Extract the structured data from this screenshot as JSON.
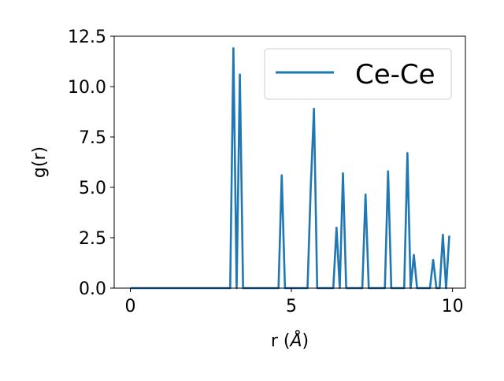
{
  "chart_data": {
    "type": "line",
    "title": "",
    "xlabel_main": "r (",
    "xlabel_unit": "Å",
    "xlabel_close": ")",
    "ylabel": "g(r)",
    "xlim": [
      -0.5,
      10.4
    ],
    "ylim": [
      0,
      12.5
    ],
    "xticks": [
      0,
      5,
      10
    ],
    "xtick_labels": [
      "0",
      "5",
      "10"
    ],
    "yticks": [
      0,
      2.5,
      5.0,
      7.5,
      10.0,
      12.5
    ],
    "ytick_labels": [
      "0.0",
      "2.5",
      "5.0",
      "7.5",
      "10.0",
      "12.5"
    ],
    "grid": false,
    "legend_position": "top-right",
    "series": [
      {
        "name": "Ce-Ce",
        "color": "#1f77b4",
        "x": [
          0.0,
          3.1,
          3.2,
          3.3,
          3.4,
          3.5,
          4.6,
          4.7,
          4.8,
          5.5,
          5.6,
          5.7,
          5.8,
          5.9,
          6.3,
          6.4,
          6.5,
          6.6,
          6.7,
          7.2,
          7.3,
          7.4,
          7.9,
          8.0,
          8.1,
          8.5,
          8.6,
          8.7,
          8.8,
          8.9,
          9.3,
          9.4,
          9.5,
          9.6,
          9.7,
          9.8,
          9.9
        ],
        "y": [
          0.0,
          0.0,
          11.9,
          0.0,
          10.6,
          0.0,
          0.0,
          5.6,
          0.0,
          0.0,
          5.0,
          8.9,
          0.0,
          0.0,
          0.0,
          3.0,
          0.0,
          5.7,
          0.0,
          0.0,
          4.65,
          0.0,
          0.0,
          5.8,
          0.0,
          0.0,
          6.7,
          0.0,
          1.65,
          0.0,
          0.0,
          1.4,
          0.0,
          0.0,
          2.65,
          0.0,
          2.6
        ]
      }
    ]
  }
}
